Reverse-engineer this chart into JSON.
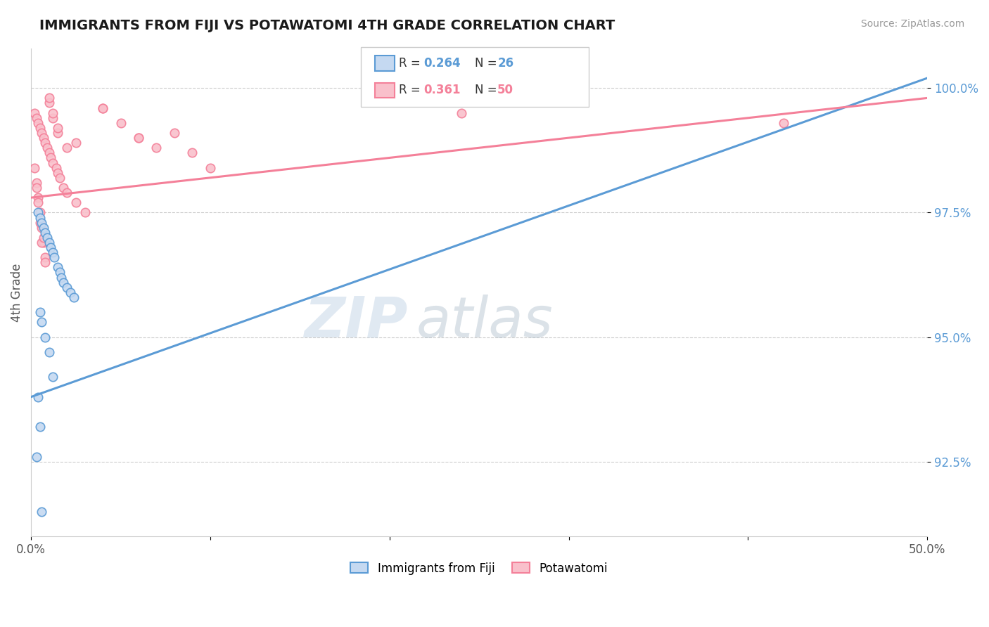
{
  "title": "IMMIGRANTS FROM FIJI VS POTAWATOMI 4TH GRADE CORRELATION CHART",
  "source": "Source: ZipAtlas.com",
  "ylabel": "4th Grade",
  "xmin": 0.0,
  "xmax": 50.0,
  "ymin": 91.0,
  "ymax": 100.8,
  "legend_entries": [
    {
      "label": "Immigrants from Fiji",
      "R": 0.264,
      "N": 26
    },
    {
      "label": "Potawatomi",
      "R": 0.361,
      "N": 50
    }
  ],
  "blue_scatter_x": [
    0.4,
    0.5,
    0.6,
    0.7,
    0.8,
    0.9,
    1.0,
    1.1,
    1.2,
    1.3,
    1.5,
    1.6,
    1.7,
    1.8,
    2.0,
    2.2,
    2.4,
    0.5,
    0.6,
    0.8,
    1.0,
    1.2,
    0.4,
    0.5,
    0.3,
    0.6
  ],
  "blue_scatter_y": [
    97.5,
    97.4,
    97.3,
    97.2,
    97.1,
    97.0,
    96.9,
    96.8,
    96.7,
    96.6,
    96.4,
    96.3,
    96.2,
    96.1,
    96.0,
    95.9,
    95.8,
    95.5,
    95.3,
    95.0,
    94.7,
    94.2,
    93.8,
    93.2,
    92.6,
    91.5
  ],
  "pink_scatter_x": [
    0.2,
    0.3,
    0.4,
    0.5,
    0.6,
    0.7,
    0.8,
    0.9,
    1.0,
    1.1,
    1.2,
    1.4,
    1.5,
    1.6,
    1.8,
    2.0,
    2.5,
    3.0,
    4.0,
    5.0,
    6.0,
    7.0,
    8.0,
    9.0,
    10.0,
    0.3,
    0.4,
    0.5,
    0.6,
    0.7,
    0.8,
    1.0,
    1.2,
    1.5,
    2.0,
    0.2,
    0.3,
    0.4,
    0.5,
    0.6,
    0.8,
    1.0,
    1.2,
    1.5,
    2.5,
    4.0,
    6.0,
    24.0,
    42.0,
    0.7
  ],
  "pink_scatter_y": [
    99.5,
    99.4,
    99.3,
    99.2,
    99.1,
    99.0,
    98.9,
    98.8,
    98.7,
    98.6,
    98.5,
    98.4,
    98.3,
    98.2,
    98.0,
    97.9,
    97.7,
    97.5,
    99.6,
    99.3,
    99.0,
    98.8,
    99.1,
    98.7,
    98.4,
    98.1,
    97.8,
    97.5,
    97.2,
    96.9,
    96.6,
    99.7,
    99.4,
    99.1,
    98.8,
    98.4,
    98.0,
    97.7,
    97.3,
    96.9,
    96.5,
    99.8,
    99.5,
    99.2,
    98.9,
    99.6,
    99.0,
    99.5,
    99.3,
    97.0
  ],
  "blue_line_x": [
    0.0,
    50.0
  ],
  "blue_line_y": [
    93.8,
    100.2
  ],
  "pink_line_x": [
    0.0,
    50.0
  ],
  "pink_line_y": [
    97.8,
    99.8
  ],
  "scatter_size": 80,
  "blue_color": "#5b9bd5",
  "pink_color": "#f48099",
  "blue_fill": "#c5d9f1",
  "pink_fill": "#f9c0cb",
  "grid_color": "#cccccc",
  "background_color": "#ffffff",
  "yticks": [
    92.5,
    95.0,
    97.5,
    100.0
  ],
  "watermark_zip": "ZIP",
  "watermark_atlas": "atlas"
}
